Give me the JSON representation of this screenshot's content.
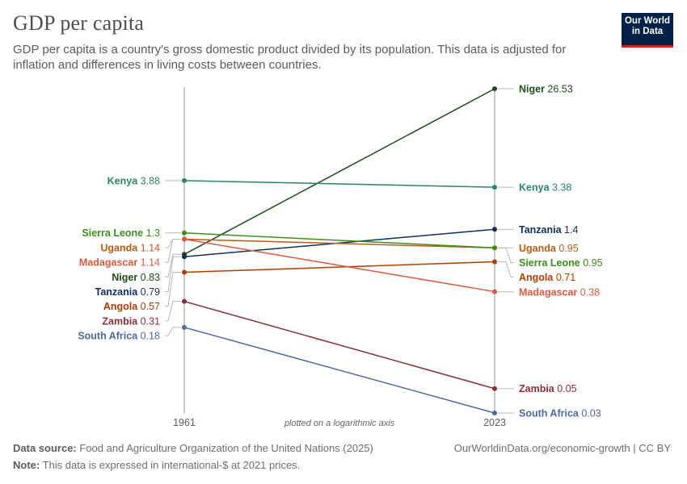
{
  "header": {
    "title": "GDP per capita",
    "subtitle": "GDP per capita is a country's gross domestic product divided by its population. This data is adjusted for inflation and differences in living costs between countries.",
    "logo_line1": "Our World",
    "logo_line2": "in Data"
  },
  "chart_data": {
    "type": "line",
    "subtype": "slope",
    "scale": "log",
    "x": [
      "1961",
      "2023"
    ],
    "axis_note": "plotted on a logarithmic axis",
    "series": [
      {
        "name": "Niger",
        "start": 0.83,
        "end": 26.53,
        "start_label": "0.83",
        "end_label": "26.53",
        "color": "#1d4d1a"
      },
      {
        "name": "Kenya",
        "start": 3.88,
        "end": 3.38,
        "start_label": "3.88",
        "end_label": "3.38",
        "color": "#2c8465"
      },
      {
        "name": "Tanzania",
        "start": 0.79,
        "end": 1.4,
        "start_label": "0.79",
        "end_label": "1.4",
        "color": "#0f2e5b"
      },
      {
        "name": "Uganda",
        "start": 1.14,
        "end": 0.95,
        "start_label": "1.14",
        "end_label": "0.95",
        "color": "#be5915"
      },
      {
        "name": "Sierra Leone",
        "start": 1.3,
        "end": 0.95,
        "start_label": "1.3",
        "end_label": "0.95",
        "color": "#3b8e1d"
      },
      {
        "name": "Angola",
        "start": 0.57,
        "end": 0.71,
        "start_label": "0.57",
        "end_label": "0.71",
        "color": "#b33d00"
      },
      {
        "name": "Madagascar",
        "start": 1.14,
        "end": 0.38,
        "start_label": "1.14",
        "end_label": "0.38",
        "color": "#d95a40"
      },
      {
        "name": "Zambia",
        "start": 0.31,
        "end": 0.05,
        "start_label": "0.31",
        "end_label": "0.05",
        "color": "#883039"
      },
      {
        "name": "South Africa",
        "start": 0.18,
        "end": 0.03,
        "start_label": "0.18",
        "end_label": "0.03",
        "color": "#4c6a9c"
      }
    ],
    "left_label_order": [
      "Kenya",
      "Sierra Leone",
      "Uganda",
      "Madagascar",
      "Niger",
      "Tanzania",
      "Angola",
      "Zambia",
      "South Africa"
    ],
    "right_label_order": [
      "Niger",
      "Kenya",
      "Tanzania",
      "Uganda",
      "Sierra Leone",
      "Angola",
      "Madagascar",
      "Zambia",
      "South Africa"
    ]
  },
  "footer": {
    "source_label": "Data source:",
    "source_text": "Food and Agriculture Organization of the United Nations (2025)",
    "note_label": "Note:",
    "note_text": "This data is expressed in international-$ at 2021 prices.",
    "url_text": "OurWorldinData.org/economic-growth | CC BY"
  }
}
